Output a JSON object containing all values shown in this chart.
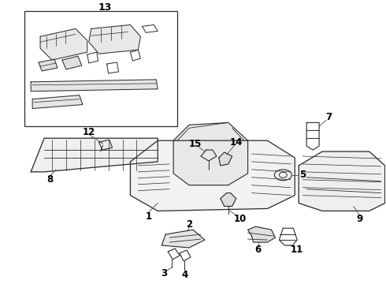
{
  "background_color": "#ffffff",
  "line_color": "#2a2a2a",
  "label_color": "#000000",
  "fig_width": 4.9,
  "fig_height": 3.6,
  "dpi": 100,
  "font_size_labels": 8.5
}
